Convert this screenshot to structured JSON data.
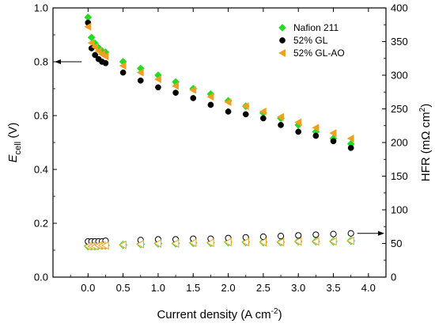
{
  "chart_data": {
    "type": "scatter",
    "x_axis": {
      "label": "Current density (A cm",
      "label_sup": "-2",
      "label_tail": ")",
      "range": [
        -0.5,
        4.25
      ],
      "ticks": [
        0.0,
        0.5,
        1.0,
        1.5,
        2.0,
        2.5,
        3.0,
        3.5,
        4.0
      ],
      "tick_labels": [
        "0.0",
        "0.5",
        "1.0",
        "1.5",
        "2.0",
        "2.5",
        "3.0",
        "3.5",
        "4.0"
      ]
    },
    "y_left_axis": {
      "label_main": "E",
      "label_sub": "cell",
      "label_tail": " (V)",
      "range": [
        0.0,
        1.0
      ],
      "ticks": [
        0.0,
        0.2,
        0.4,
        0.6,
        0.8,
        1.0
      ],
      "tick_labels": [
        "0.0",
        "0.2",
        "0.4",
        "0.6",
        "0.8",
        "1.0"
      ]
    },
    "y_right_axis": {
      "label_main": "HFR (mΩ cm",
      "label_sup": "2",
      "label_tail": ")",
      "range": [
        0,
        400
      ],
      "ticks": [
        0,
        50,
        100,
        150,
        200,
        250,
        300,
        350,
        400
      ],
      "tick_labels": [
        "0",
        "50",
        "100",
        "150",
        "200",
        "250",
        "300",
        "350",
        "400"
      ]
    },
    "legend_position": "top-right",
    "series": [
      {
        "name": "Nafion 211",
        "marker": "diamond",
        "color": "#22dd22",
        "polarization": {
          "axis": "left",
          "x": [
            0.0,
            0.05,
            0.1,
            0.15,
            0.2,
            0.25,
            0.5,
            0.75,
            1.0,
            1.25,
            1.5,
            1.75,
            2.0,
            2.25,
            2.5,
            2.75,
            3.0,
            3.25,
            3.5,
            3.75
          ],
          "y": [
            0.965,
            0.89,
            0.868,
            0.852,
            0.84,
            0.835,
            0.8,
            0.775,
            0.75,
            0.725,
            0.7,
            0.68,
            0.655,
            0.635,
            0.61,
            0.59,
            0.565,
            0.54,
            0.515,
            0.495
          ]
        },
        "hfr": {
          "axis": "right",
          "x": [
            0.0,
            0.05,
            0.1,
            0.15,
            0.2,
            0.25,
            0.5,
            0.75,
            1.0,
            1.25,
            1.5,
            1.75,
            2.0,
            2.25,
            2.5,
            2.75,
            3.0,
            3.25,
            3.5,
            3.75
          ],
          "y": [
            46,
            46,
            46,
            47,
            47,
            47,
            48,
            49,
            50,
            50,
            51,
            51,
            52,
            52,
            52,
            52,
            53,
            53,
            53,
            54
          ]
        }
      },
      {
        "name": "52% GL",
        "marker": "circle",
        "color": "#000000",
        "polarization": {
          "axis": "left",
          "x": [
            0.0,
            0.05,
            0.1,
            0.15,
            0.2,
            0.25,
            0.5,
            0.75,
            1.0,
            1.25,
            1.5,
            1.75,
            2.0,
            2.25,
            2.5,
            2.75,
            3.0,
            3.25,
            3.5,
            3.75
          ],
          "y": [
            0.945,
            0.85,
            0.825,
            0.81,
            0.8,
            0.795,
            0.76,
            0.73,
            0.705,
            0.685,
            0.665,
            0.64,
            0.615,
            0.605,
            0.59,
            0.565,
            0.54,
            0.525,
            0.505,
            0.48
          ]
        },
        "hfr": {
          "axis": "right",
          "x": [
            0.0,
            0.05,
            0.1,
            0.15,
            0.2,
            0.25,
            0.75,
            1.0,
            1.25,
            1.5,
            1.75,
            2.0,
            2.25,
            2.5,
            2.75,
            3.0,
            3.25,
            3.5,
            3.75
          ],
          "y": [
            53,
            53,
            53,
            53,
            53,
            54,
            55,
            56,
            56,
            57,
            57,
            58,
            59,
            60,
            61,
            62,
            63,
            64,
            65
          ]
        }
      },
      {
        "name": "52% GL-AO",
        "marker": "triangle-left",
        "color": "#f0a020",
        "polarization": {
          "axis": "left",
          "x": [
            0.0,
            0.05,
            0.1,
            0.15,
            0.2,
            0.25,
            0.5,
            0.75,
            1.0,
            1.25,
            1.5,
            1.75,
            2.0,
            2.25,
            2.5,
            2.75,
            3.0,
            3.25,
            3.5,
            3.75
          ],
          "y": [
            0.93,
            0.87,
            0.855,
            0.84,
            0.828,
            0.82,
            0.785,
            0.76,
            0.735,
            0.71,
            0.695,
            0.67,
            0.65,
            0.635,
            0.615,
            0.595,
            0.575,
            0.555,
            0.535,
            0.515
          ]
        },
        "hfr": {
          "axis": "right",
          "x": [
            0.0,
            0.05,
            0.1,
            0.15,
            0.2,
            0.25,
            0.5,
            0.75,
            1.0,
            1.25,
            1.5,
            1.75,
            2.0,
            2.25,
            2.5,
            2.75,
            3.0,
            3.25,
            3.5,
            3.75
          ],
          "y": [
            46,
            46,
            46,
            47,
            47,
            47,
            48,
            49,
            50,
            50,
            51,
            51,
            52,
            52,
            52,
            52,
            53,
            53,
            53,
            54
          ]
        }
      }
    ],
    "annotations": [
      {
        "type": "arrow",
        "at_x": 0.0,
        "at_y": 0.8,
        "axis": "left",
        "direction": "left"
      },
      {
        "type": "arrow",
        "at_x": 3.75,
        "at_y": 65,
        "axis": "right",
        "direction": "right"
      }
    ]
  }
}
